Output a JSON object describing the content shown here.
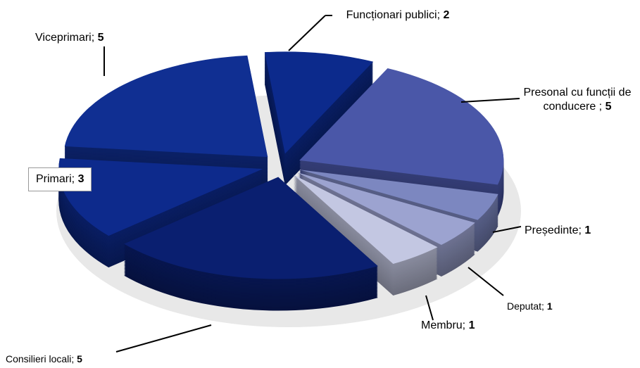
{
  "chart_data": {
    "type": "pie",
    "categories": [
      "Funcționari publici;",
      "Presonal cu funcții de conducere ;",
      "Președinte;",
      "Deputat;",
      "Membru;",
      "Consilieri locali;",
      "Primari;",
      "Viceprimari;"
    ],
    "values": [
      2,
      5,
      1,
      1,
      1,
      5,
      3,
      5
    ],
    "colors": [
      "#0c2a8c",
      "#4a57a8",
      "#7c87c0",
      "#9ca3d0",
      "#c3c7e2",
      "#0a1f70",
      "#0d2a8c",
      "#102f92"
    ]
  }
}
